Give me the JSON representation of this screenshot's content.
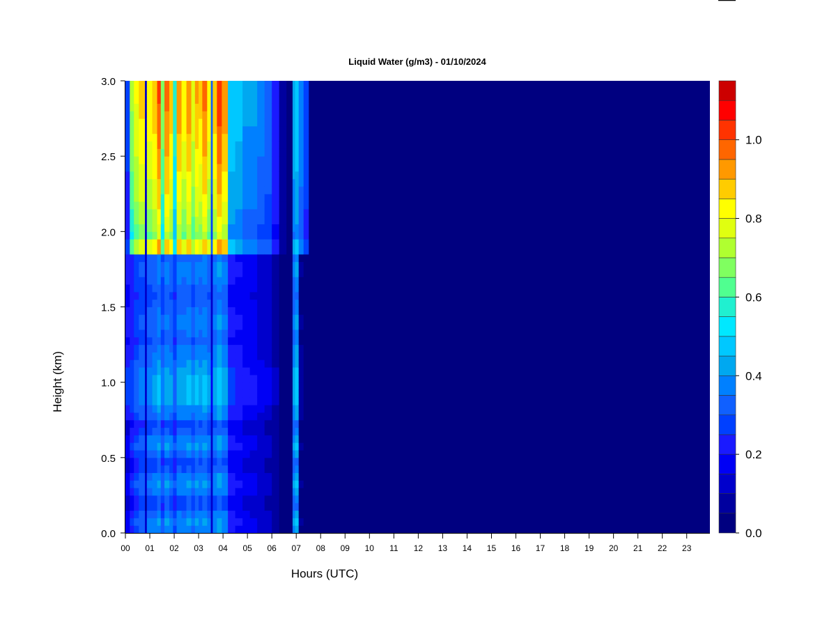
{
  "chart_data": {
    "type": "heatmap",
    "title": "Liquid Water (g/m3) - 01/10/2024",
    "xlabel": "Hours (UTC)",
    "ylabel": "Height (km)",
    "x_ticks": [
      "00",
      "01",
      "02",
      "03",
      "04",
      "05",
      "06",
      "07",
      "08",
      "09",
      "10",
      "11",
      "12",
      "13",
      "14",
      "15",
      "16",
      "17",
      "18",
      "19",
      "20",
      "21",
      "22",
      "23"
    ],
    "y_ticks": [
      "0.0",
      "0.5",
      "1.0",
      "1.5",
      "2.0",
      "2.5",
      "3.0"
    ],
    "xlim": [
      0,
      23.95
    ],
    "ylim": [
      0,
      3.0
    ],
    "colorbar": {
      "ticks": [
        "0.0",
        "0.2",
        "0.4",
        "0.6",
        "0.8",
        "1.0"
      ],
      "range": [
        0,
        1.15
      ],
      "levels": [
        0,
        0.05,
        0.1,
        0.15,
        0.2,
        0.25,
        0.3,
        0.35,
        0.4,
        0.45,
        0.5,
        0.55,
        0.6,
        0.65,
        0.7,
        0.75,
        0.8,
        0.85,
        0.9,
        0.95,
        1.0,
        1.05,
        1.1,
        1.15
      ],
      "colors": [
        "#000080",
        "#00009f",
        "#0000cc",
        "#0000f5",
        "#1a1aff",
        "#0040ff",
        "#1060ff",
        "#0080ff",
        "#00a8f0",
        "#00c8ff",
        "#00e8ff",
        "#20f0d0",
        "#50ff90",
        "#80ff60",
        "#b0ff30",
        "#e0ff10",
        "#ffff00",
        "#ffcc00",
        "#ff9900",
        "#ff6600",
        "#ff3300",
        "#ff0000",
        "#cc0000",
        "#990000",
        "#770000"
      ]
    },
    "profiles": [
      {
        "t": [
          0.0,
          0.18
        ],
        "top": 0.28,
        "mid": 0.22,
        "low": 0.18
      },
      {
        "t": [
          0.18,
          0.35
        ],
        "top": 0.72,
        "mid": 0.24,
        "low": 0.25
      },
      {
        "t": [
          0.35,
          0.55
        ],
        "top": 0.82,
        "mid": 0.28,
        "low": 0.3
      },
      {
        "t": [
          0.55,
          0.8
        ],
        "top": 0.88,
        "mid": 0.3,
        "low": 0.33
      },
      {
        "t": [
          0.8,
          0.88
        ],
        "top": 0.15,
        "mid": 0.12,
        "low": 0.12
      },
      {
        "t": [
          0.88,
          1.1
        ],
        "top": 0.85,
        "mid": 0.32,
        "low": 0.36
      },
      {
        "t": [
          1.1,
          1.3
        ],
        "top": 0.9,
        "mid": 0.34,
        "low": 0.37
      },
      {
        "t": [
          1.3,
          1.45
        ],
        "top": 1.02,
        "mid": 0.38,
        "low": 0.4
      },
      {
        "t": [
          1.45,
          1.6
        ],
        "top": 0.7,
        "mid": 0.3,
        "low": 0.32
      },
      {
        "t": [
          1.6,
          1.8
        ],
        "top": 0.98,
        "mid": 0.36,
        "low": 0.39
      },
      {
        "t": [
          1.8,
          1.95
        ],
        "top": 0.9,
        "mid": 0.34,
        "low": 0.36
      },
      {
        "t": [
          1.95,
          2.1
        ],
        "top": 0.6,
        "mid": 0.28,
        "low": 0.3
      },
      {
        "t": [
          2.1,
          2.3
        ],
        "top": 0.95,
        "mid": 0.36,
        "low": 0.38
      },
      {
        "t": [
          2.3,
          2.5
        ],
        "top": 0.85,
        "mid": 0.35,
        "low": 0.37
      },
      {
        "t": [
          2.5,
          2.7
        ],
        "top": 0.95,
        "mid": 0.37,
        "low": 0.39
      },
      {
        "t": [
          2.7,
          2.85
        ],
        "top": 0.8,
        "mid": 0.33,
        "low": 0.35
      },
      {
        "t": [
          2.85,
          3.0
        ],
        "top": 0.92,
        "mid": 0.37,
        "low": 0.4
      },
      {
        "t": [
          3.0,
          3.15
        ],
        "top": 0.88,
        "mid": 0.35,
        "low": 0.38
      },
      {
        "t": [
          3.15,
          3.35
        ],
        "top": 0.98,
        "mid": 0.38,
        "low": 0.4
      },
      {
        "t": [
          3.35,
          3.5
        ],
        "top": 0.85,
        "mid": 0.34,
        "low": 0.36
      },
      {
        "t": [
          3.5,
          3.58
        ],
        "top": 0.35,
        "mid": 0.14,
        "low": 0.14
      },
      {
        "t": [
          3.58,
          3.75
        ],
        "top": 0.9,
        "mid": 0.36,
        "low": 0.38
      },
      {
        "t": [
          3.75,
          3.95
        ],
        "top": 1.05,
        "mid": 0.4,
        "low": 0.42
      },
      {
        "t": [
          3.95,
          4.2
        ],
        "top": 0.95,
        "mid": 0.36,
        "low": 0.38
      },
      {
        "t": [
          4.2,
          4.5
        ],
        "top": 0.5,
        "mid": 0.22,
        "low": 0.22
      },
      {
        "t": [
          4.5,
          4.8
        ],
        "top": 0.48,
        "mid": 0.2,
        "low": 0.2
      },
      {
        "t": [
          4.8,
          5.1
        ],
        "top": 0.42,
        "mid": 0.18,
        "low": 0.18
      },
      {
        "t": [
          5.1,
          5.4
        ],
        "top": 0.42,
        "mid": 0.17,
        "low": 0.16
      },
      {
        "t": [
          5.4,
          5.7
        ],
        "top": 0.38,
        "mid": 0.14,
        "low": 0.14
      },
      {
        "t": [
          5.7,
          6.0
        ],
        "top": 0.35,
        "mid": 0.13,
        "low": 0.12
      },
      {
        "t": [
          6.0,
          6.3
        ],
        "top": 0.25,
        "mid": 0.09,
        "low": 0.09
      },
      {
        "t": [
          6.3,
          6.6
        ],
        "top": 0.1,
        "mid": 0.03,
        "low": 0.03
      },
      {
        "t": [
          6.6,
          6.85
        ],
        "top": 0.04,
        "mid": 0.02,
        "low": 0.02
      },
      {
        "t": [
          6.85,
          6.95
        ],
        "top": 0.45,
        "mid": 0.35,
        "low": 0.4
      },
      {
        "t": [
          6.95,
          7.1
        ],
        "top": 0.5,
        "mid": 0.4,
        "low": 0.45
      },
      {
        "t": [
          7.1,
          7.3
        ],
        "top": 0.4,
        "mid": 0.05,
        "low": 0.05
      },
      {
        "t": [
          7.3,
          7.5
        ],
        "top": 0.3,
        "mid": 0.02,
        "low": 0.03
      },
      {
        "t": [
          7.5,
          23.95
        ],
        "top": 0.0,
        "mid": 0.0,
        "low": 0.0
      }
    ]
  }
}
